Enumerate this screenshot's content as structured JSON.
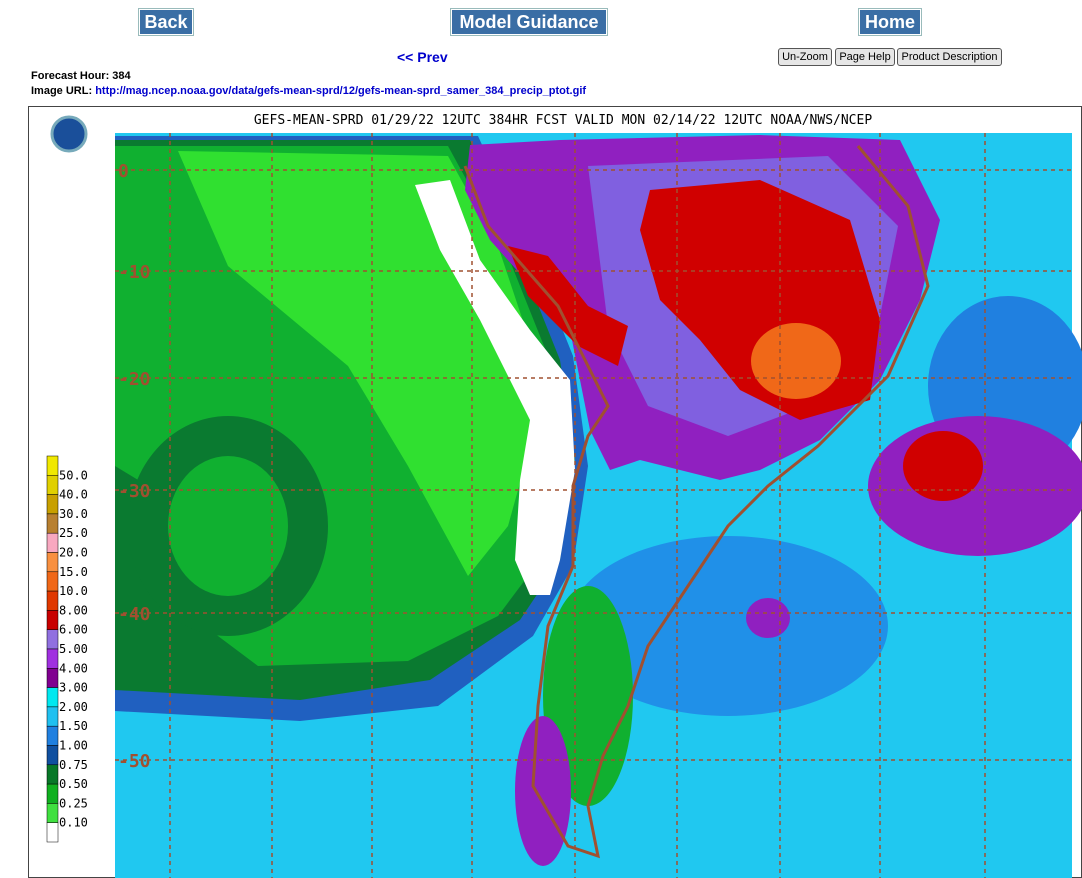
{
  "nav": {
    "back": "Back",
    "model_guidance": "Model Guidance",
    "home": "Home",
    "prev": "<< Prev"
  },
  "tools": [
    "Un-Zoom",
    "Page Help",
    "Product Description"
  ],
  "info": {
    "forecast_hour": "Forecast Hour: 384",
    "image_url_label": "Image URL:",
    "image_url": "http://mag.ncep.noaa.gov/data/gefs-mean-sprd/12/gefs-mean-sprd_samer_384_precip_ptot.gif"
  },
  "map": {
    "title": "GEFS-MEAN-SPRD 01/29/22 12UTC 384HR FCST VALID MON 02/14/22 12UTC NOAA/NWS/NCEP",
    "lat_labels": [
      "0",
      "-10",
      "-20",
      "-30",
      "-40",
      "-50"
    ],
    "legend": [
      {
        "label": "50.0",
        "color": "#f0e800"
      },
      {
        "label": "40.0",
        "color": "#e0d000"
      },
      {
        "label": "30.0",
        "color": "#c8a000"
      },
      {
        "label": "25.0",
        "color": "#b88030"
      },
      {
        "label": "20.0",
        "color": "#f8a8c0"
      },
      {
        "label": "15.0",
        "color": "#f89040"
      },
      {
        "label": "10.0",
        "color": "#f06818"
      },
      {
        "label": "8.00",
        "color": "#e03800"
      },
      {
        "label": "6.00",
        "color": "#c80000"
      },
      {
        "label": "5.00",
        "color": "#9070e0"
      },
      {
        "label": "4.00",
        "color": "#a030e0"
      },
      {
        "label": "3.00",
        "color": "#800090"
      },
      {
        "label": "2.00",
        "color": "#00e8f0"
      },
      {
        "label": "1.50",
        "color": "#20c0f0"
      },
      {
        "label": "1.00",
        "color": "#2080e0"
      },
      {
        "label": "0.75",
        "color": "#1050a0"
      },
      {
        "label": "0.50",
        "color": "#087828"
      },
      {
        "label": "0.25",
        "color": "#10b020"
      },
      {
        "label": "0.10",
        "color": "#40e040"
      }
    ]
  }
}
